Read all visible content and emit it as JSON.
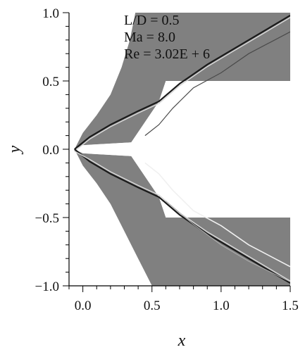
{
  "chart_data": {
    "type": "heatmap",
    "title": "",
    "xlabel": "x",
    "ylabel": "y",
    "xlim": [
      -0.1,
      1.5
    ],
    "ylim": [
      -1.0,
      1.0
    ],
    "xticks": [
      0.0,
      0.5,
      1.0,
      1.5
    ],
    "yticks": [
      -1.0,
      -0.5,
      0.0,
      0.5,
      1.0
    ],
    "xtick_labels": [
      "0.0",
      "0.5",
      "1.0",
      "1.5"
    ],
    "ytick_labels": [
      "−1.0",
      "−0.5",
      "0.0",
      "0.5",
      "1.0"
    ],
    "annotations": [
      "L/D = 0.5",
      "Ma = 8.0",
      "Re = 3.02E + 6"
    ],
    "field_color": "#808080",
    "background_color": "#ffffff",
    "body_geometry": {
      "nose_x": -0.06,
      "body_half_gap": 0.03,
      "flare_start_x": 0.35,
      "flare_end_x": 0.6,
      "step_height": 0.5,
      "body_end_x": 1.5
    },
    "shock_upper": [
      [
        -0.06,
        0.0
      ],
      [
        0.05,
        0.09
      ],
      [
        0.2,
        0.18
      ],
      [
        0.4,
        0.28
      ],
      [
        0.55,
        0.35
      ],
      [
        0.7,
        0.48
      ],
      [
        0.9,
        0.62
      ],
      [
        1.1,
        0.74
      ],
      [
        1.3,
        0.86
      ],
      [
        1.5,
        0.98
      ]
    ],
    "shock_lower": [
      [
        -0.06,
        0.0
      ],
      [
        0.05,
        -0.09
      ],
      [
        0.2,
        -0.18
      ],
      [
        0.4,
        -0.28
      ],
      [
        0.55,
        -0.35
      ],
      [
        0.7,
        -0.48
      ],
      [
        0.9,
        -0.62
      ],
      [
        1.1,
        -0.74
      ],
      [
        1.3,
        -0.86
      ],
      [
        1.5,
        -0.98
      ]
    ],
    "domain_outer_upper": [
      [
        -0.06,
        0.0
      ],
      [
        0.0,
        0.12
      ],
      [
        0.1,
        0.25
      ],
      [
        0.2,
        0.4
      ],
      [
        0.28,
        0.6
      ],
      [
        0.34,
        0.8
      ],
      [
        0.38,
        1.0
      ]
    ],
    "domain_outer_lower": [
      [
        -0.06,
        0.0
      ],
      [
        0.0,
        -0.12
      ],
      [
        0.1,
        -0.25
      ],
      [
        0.2,
        -0.4
      ],
      [
        0.3,
        -0.6
      ],
      [
        0.4,
        -0.8
      ],
      [
        0.5,
        -1.0
      ]
    ]
  }
}
